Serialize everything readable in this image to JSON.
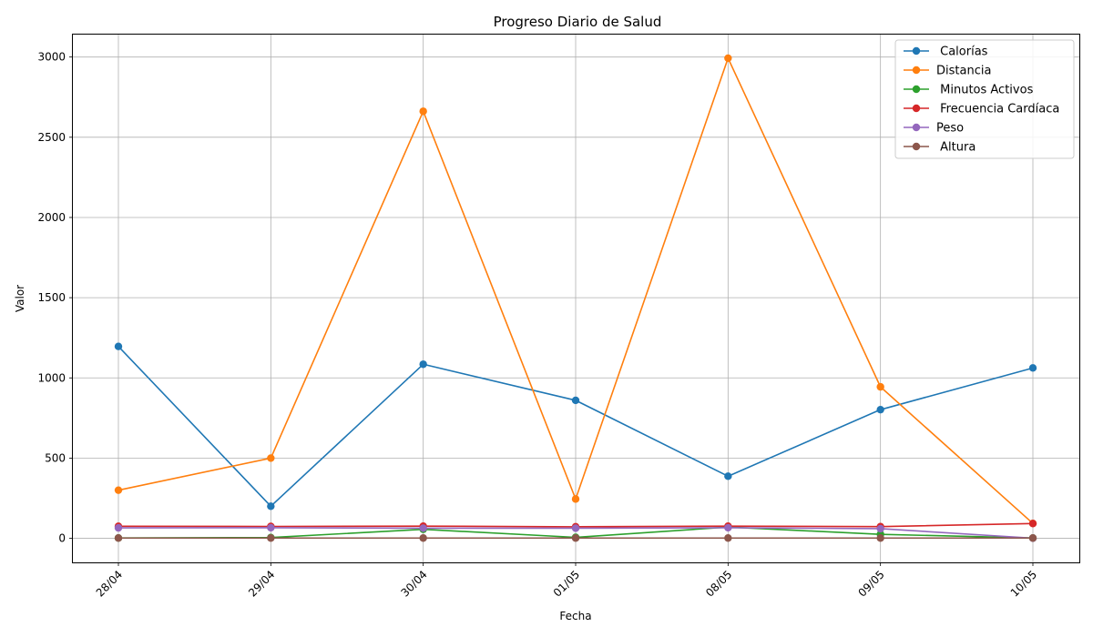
{
  "chart_data": {
    "type": "line",
    "title": "Progreso Diario de Salud",
    "xlabel": "Fecha",
    "ylabel": "Valor",
    "categories": [
      "28/04",
      "29/04",
      "30/04",
      "01/05",
      "08/05",
      "09/05",
      "10/05"
    ],
    "ylim": [
      -150,
      3140
    ],
    "yticks": [
      0,
      500,
      1000,
      1500,
      2000,
      2500,
      3000
    ],
    "grid": true,
    "legend_position": "top-right",
    "series": [
      {
        "name": " Calorías",
        "color": "#1f77b4",
        "values": [
          1196,
          200,
          1085,
          860,
          387,
          802,
          1062
        ]
      },
      {
        "name": "Distancia",
        "color": "#ff7f0e",
        "values": [
          300,
          500,
          2662,
          245,
          2993,
          944,
          93
        ]
      },
      {
        "name": " Minutos Activos",
        "color": "#2ca02c",
        "values": [
          2,
          5,
          56,
          6,
          70,
          25,
          2
        ]
      },
      {
        "name": " Frecuencia Cardíaca",
        "color": "#d62728",
        "values": [
          75,
          74,
          76,
          72,
          76,
          73,
          92
        ]
      },
      {
        "name": "Peso",
        "color": "#9467bd",
        "values": [
          65,
          66,
          63,
          63,
          66,
          60,
          1
        ]
      },
      {
        "name": " Altura",
        "color": "#8c564b",
        "values": [
          1.7,
          1.7,
          1.7,
          1.7,
          1.7,
          1.7,
          1.7
        ]
      }
    ]
  }
}
